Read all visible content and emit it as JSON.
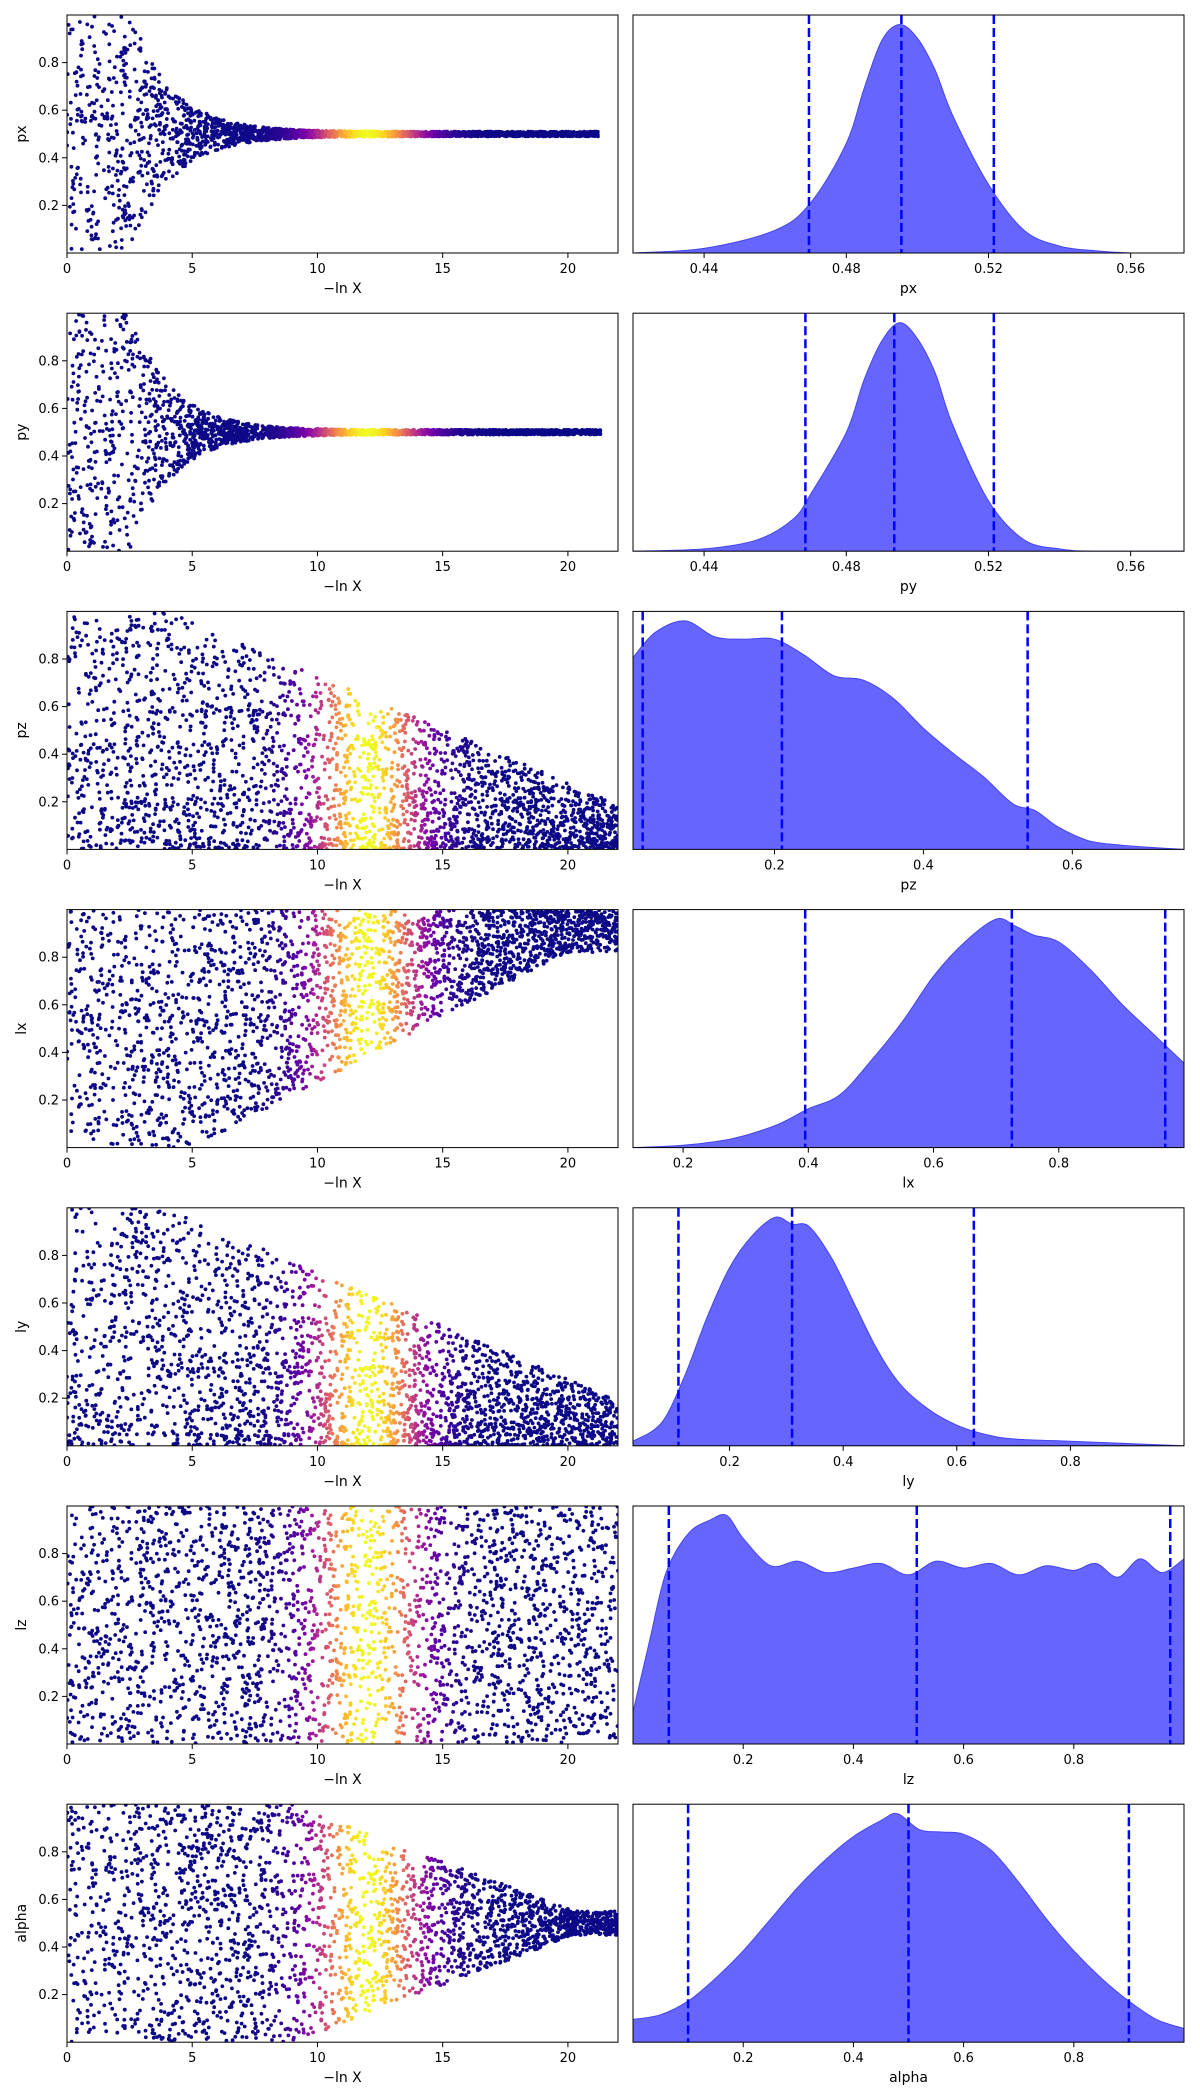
{
  "chart_data": {
    "type": "trace-plot",
    "layout": "7 rows x 2 columns",
    "left_panel": {
      "type": "scatter",
      "xlabel": "−ln X",
      "xlim": [
        0,
        22
      ],
      "xticks": [
        0,
        5,
        10,
        15,
        20
      ],
      "ylim": [
        0,
        1
      ],
      "yticks": [
        0.2,
        0.4,
        0.6,
        0.8
      ],
      "colormap": "plasma",
      "color_peak_lnX": 12
    },
    "right_panel": {
      "type": "area",
      "fill_color": "#6666ff",
      "quantile_line_color": "#0000ff",
      "quantile_line_style": "dashed"
    },
    "rows": [
      {
        "param": "px",
        "trace": {
          "shape": "converging",
          "center": 0.5,
          "spread_min": 0.01,
          "max_lnX": 21.2
        },
        "posterior": {
          "xlim": [
            0.42,
            0.575
          ],
          "xticks": [
            0.44,
            0.48,
            0.52,
            0.56
          ],
          "quantiles": [
            0.4695,
            0.4955,
            0.5215
          ],
          "x": [
            0.42,
            0.44,
            0.46,
            0.47,
            0.48,
            0.485,
            0.49,
            0.495,
            0.5,
            0.505,
            0.51,
            0.52,
            0.53,
            0.54,
            0.55,
            0.56,
            0.575
          ],
          "y": [
            0.0,
            0.02,
            0.1,
            0.22,
            0.48,
            0.72,
            0.93,
            1.0,
            0.94,
            0.8,
            0.6,
            0.3,
            0.1,
            0.03,
            0.01,
            0.0,
            0.0
          ]
        }
      },
      {
        "param": "py",
        "trace": {
          "shape": "converging",
          "center": 0.5,
          "spread_min": 0.01,
          "max_lnX": 21.3
        },
        "posterior": {
          "xlim": [
            0.42,
            0.575
          ],
          "xticks": [
            0.44,
            0.48,
            0.52,
            0.56
          ],
          "quantiles": [
            0.4685,
            0.4935,
            0.5215
          ],
          "x": [
            0.42,
            0.44,
            0.455,
            0.465,
            0.47,
            0.48,
            0.485,
            0.49,
            0.495,
            0.5,
            0.505,
            0.51,
            0.52,
            0.53,
            0.54,
            0.55,
            0.575
          ],
          "y": [
            0.0,
            0.01,
            0.05,
            0.14,
            0.25,
            0.52,
            0.75,
            0.92,
            1.0,
            0.93,
            0.78,
            0.55,
            0.22,
            0.05,
            0.01,
            0.0,
            0.0
          ]
        }
      },
      {
        "param": "pz",
        "trace": {
          "shape": "low",
          "bias": "low",
          "max_lnX": 22
        },
        "posterior": {
          "xlim": [
            0.01,
            0.75
          ],
          "xticks": [
            0.2,
            0.4,
            0.6
          ],
          "quantiles": [
            0.023,
            0.21,
            0.54
          ],
          "x": [
            0.01,
            0.04,
            0.08,
            0.12,
            0.16,
            0.2,
            0.24,
            0.28,
            0.32,
            0.36,
            0.4,
            0.44,
            0.48,
            0.52,
            0.55,
            0.58,
            0.62,
            0.66,
            0.7,
            0.75
          ],
          "y": [
            0.84,
            0.95,
            1.0,
            0.93,
            0.92,
            0.92,
            0.85,
            0.76,
            0.74,
            0.66,
            0.53,
            0.42,
            0.32,
            0.2,
            0.17,
            0.1,
            0.04,
            0.02,
            0.01,
            0.0
          ]
        }
      },
      {
        "param": "lx",
        "trace": {
          "shape": "high",
          "bias": "high",
          "max_lnX": 22
        },
        "posterior": {
          "xlim": [
            0.12,
            1.0
          ],
          "xticks": [
            0.2,
            0.4,
            0.6,
            0.8
          ],
          "quantiles": [
            0.395,
            0.725,
            0.97
          ],
          "x": [
            0.12,
            0.2,
            0.28,
            0.35,
            0.4,
            0.45,
            0.5,
            0.55,
            0.6,
            0.65,
            0.7,
            0.73,
            0.76,
            0.8,
            0.85,
            0.9,
            0.95,
            1.0
          ],
          "y": [
            0.0,
            0.01,
            0.04,
            0.1,
            0.17,
            0.23,
            0.38,
            0.55,
            0.75,
            0.9,
            1.0,
            0.97,
            0.93,
            0.9,
            0.78,
            0.63,
            0.5,
            0.37
          ]
        }
      },
      {
        "param": "ly",
        "trace": {
          "shape": "low",
          "bias": "low",
          "max_lnX": 22
        },
        "posterior": {
          "xlim": [
            0.03,
            1.0
          ],
          "xticks": [
            0.2,
            0.4,
            0.6,
            0.8
          ],
          "quantiles": [
            0.11,
            0.31,
            0.63
          ],
          "x": [
            0.03,
            0.08,
            0.12,
            0.16,
            0.2,
            0.24,
            0.28,
            0.31,
            0.34,
            0.38,
            0.42,
            0.46,
            0.5,
            0.55,
            0.6,
            0.65,
            0.7,
            0.8,
            0.9,
            1.0
          ],
          "y": [
            0.02,
            0.1,
            0.3,
            0.56,
            0.78,
            0.92,
            1.0,
            0.97,
            0.96,
            0.82,
            0.62,
            0.42,
            0.27,
            0.16,
            0.09,
            0.05,
            0.03,
            0.02,
            0.01,
            0.0
          ]
        }
      },
      {
        "param": "lz",
        "trace": {
          "shape": "uniform",
          "max_lnX": 22
        },
        "posterior": {
          "xlim": [
            0.0,
            1.0
          ],
          "xticks": [
            0.2,
            0.4,
            0.6,
            0.8
          ],
          "quantiles": [
            0.065,
            0.515,
            0.975
          ],
          "x": [
            0.0,
            0.03,
            0.06,
            0.1,
            0.14,
            0.17,
            0.2,
            0.25,
            0.3,
            0.35,
            0.4,
            0.45,
            0.5,
            0.55,
            0.6,
            0.65,
            0.7,
            0.75,
            0.8,
            0.84,
            0.88,
            0.92,
            0.96,
            1.0
          ],
          "y": [
            0.14,
            0.45,
            0.75,
            0.92,
            0.98,
            1.0,
            0.9,
            0.78,
            0.8,
            0.75,
            0.77,
            0.79,
            0.74,
            0.8,
            0.77,
            0.79,
            0.74,
            0.78,
            0.76,
            0.79,
            0.73,
            0.81,
            0.75,
            0.81
          ]
        }
      },
      {
        "param": "alpha",
        "trace": {
          "shape": "centered",
          "center": 0.5,
          "max_lnX": 22
        },
        "posterior": {
          "xlim": [
            0.0,
            1.0
          ],
          "xticks": [
            0.2,
            0.4,
            0.6,
            0.8
          ],
          "quantiles": [
            0.1,
            0.5,
            0.9
          ],
          "x": [
            0.0,
            0.05,
            0.1,
            0.15,
            0.2,
            0.25,
            0.3,
            0.35,
            0.4,
            0.45,
            0.48,
            0.52,
            0.56,
            0.6,
            0.65,
            0.7,
            0.75,
            0.8,
            0.85,
            0.9,
            0.95,
            1.0
          ],
          "y": [
            0.1,
            0.12,
            0.18,
            0.28,
            0.4,
            0.54,
            0.68,
            0.8,
            0.9,
            0.97,
            1.0,
            0.93,
            0.92,
            0.91,
            0.84,
            0.7,
            0.54,
            0.4,
            0.28,
            0.18,
            0.1,
            0.06
          ]
        }
      }
    ]
  }
}
